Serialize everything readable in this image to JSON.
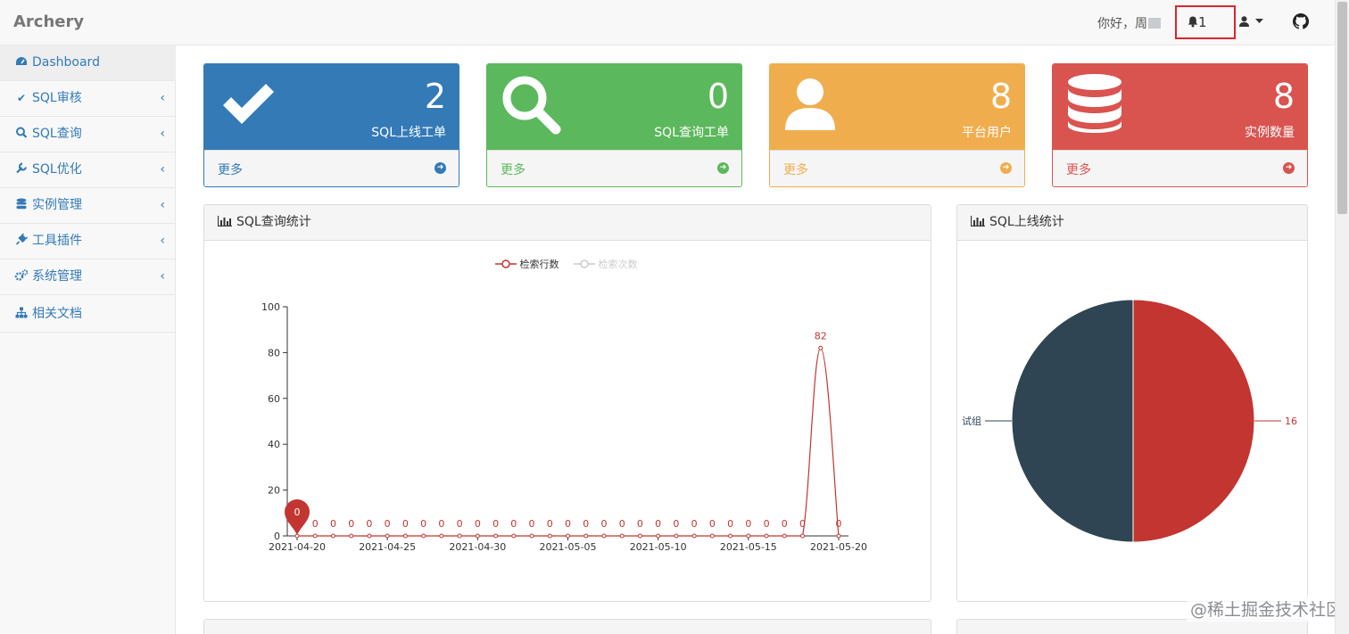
{
  "app": {
    "brand": "Archery"
  },
  "header": {
    "greeting": "你好，周",
    "notification_count": "1"
  },
  "sidebar": {
    "items": [
      {
        "label": "Dashboard",
        "icon": "dashboard-icon",
        "active": true,
        "expandable": false
      },
      {
        "label": "SQL审核",
        "icon": "check-icon",
        "active": false,
        "expandable": true
      },
      {
        "label": "SQL查询",
        "icon": "search-icon",
        "active": false,
        "expandable": true
      },
      {
        "label": "SQL优化",
        "icon": "wrench-icon",
        "active": false,
        "expandable": true
      },
      {
        "label": "实例管理",
        "icon": "database-icon",
        "active": false,
        "expandable": true
      },
      {
        "label": "工具插件",
        "icon": "plug-icon",
        "active": false,
        "expandable": true
      },
      {
        "label": "系统管理",
        "icon": "cogs-icon",
        "active": false,
        "expandable": true
      },
      {
        "label": "相关文档",
        "icon": "sitemap-icon",
        "active": false,
        "expandable": false
      }
    ]
  },
  "stats": [
    {
      "value": "2",
      "label": "SQL上线工单",
      "more": "更多",
      "icon": "check-icon",
      "color": "#337ab7"
    },
    {
      "value": "0",
      "label": "SQL查询工单",
      "more": "更多",
      "icon": "search-icon",
      "color": "#5cb85c"
    },
    {
      "value": "8",
      "label": "平台用户",
      "more": "更多",
      "icon": "user-icon",
      "color": "#f0ad4e"
    },
    {
      "value": "8",
      "label": "实例数量",
      "more": "更多",
      "icon": "database-icon",
      "color": "#d9534f"
    }
  ],
  "panels": {
    "query_title": "SQL查询统计",
    "deploy_title": "SQL上线统计"
  },
  "chart_data": [
    {
      "type": "line",
      "legend": [
        "检索行数",
        "检索次数"
      ],
      "x": [
        "2021-04-20",
        "2021-04-21",
        "2021-04-22",
        "2021-04-23",
        "2021-04-24",
        "2021-04-25",
        "2021-04-26",
        "2021-04-27",
        "2021-04-28",
        "2021-04-29",
        "2021-04-30",
        "2021-05-01",
        "2021-05-02",
        "2021-05-03",
        "2021-05-04",
        "2021-05-05",
        "2021-05-06",
        "2021-05-07",
        "2021-05-08",
        "2021-05-09",
        "2021-05-10",
        "2021-05-11",
        "2021-05-12",
        "2021-05-13",
        "2021-05-14",
        "2021-05-15",
        "2021-05-16",
        "2021-05-17",
        "2021-05-18",
        "2021-05-19",
        "2021-05-20"
      ],
      "xticks": [
        "2021-04-20",
        "2021-04-25",
        "2021-04-30",
        "2021-05-05",
        "2021-05-10",
        "2021-05-15",
        "2021-05-20"
      ],
      "series": [
        {
          "name": "检索行数",
          "values": [
            0,
            0,
            0,
            0,
            0,
            0,
            0,
            0,
            0,
            0,
            0,
            0,
            0,
            0,
            0,
            0,
            0,
            0,
            0,
            0,
            0,
            0,
            0,
            0,
            0,
            0,
            0,
            0,
            0,
            82,
            0
          ],
          "color": "#c23531"
        }
      ],
      "ylim": [
        0,
        100
      ],
      "yticks": [
        0,
        20,
        40,
        60,
        80,
        100
      ],
      "marker_value": "0"
    },
    {
      "type": "pie",
      "slices": [
        {
          "label": "16",
          "value": 50,
          "color": "#c23531"
        },
        {
          "label": "试组",
          "value": 50,
          "color": "#2f4554"
        }
      ]
    }
  ],
  "watermark": "@稀土掘金技术社区"
}
